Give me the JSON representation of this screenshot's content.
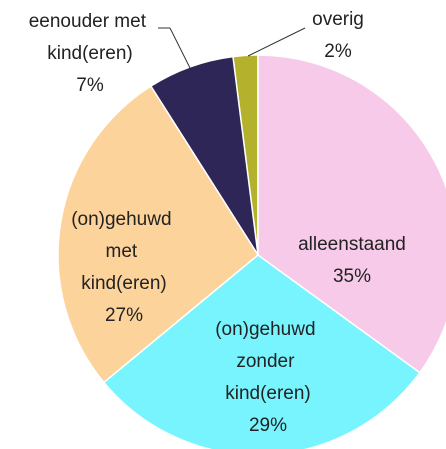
{
  "chart_data": {
    "type": "pie",
    "categories": [
      "alleenstaand",
      "(on)gehuwd zonder kind(eren)",
      "(on)gehuwd met kind(eren)",
      "eenouder met kind(eren)",
      "overig"
    ],
    "values": [
      35,
      29,
      27,
      7,
      2
    ],
    "value_labels": [
      "35%",
      "29%",
      "27%",
      "7%",
      "2%"
    ],
    "colors": [
      "#f6cae8",
      "#78f4ff",
      "#fdd39c",
      "#2d2656",
      "#b4b22c"
    ]
  }
}
